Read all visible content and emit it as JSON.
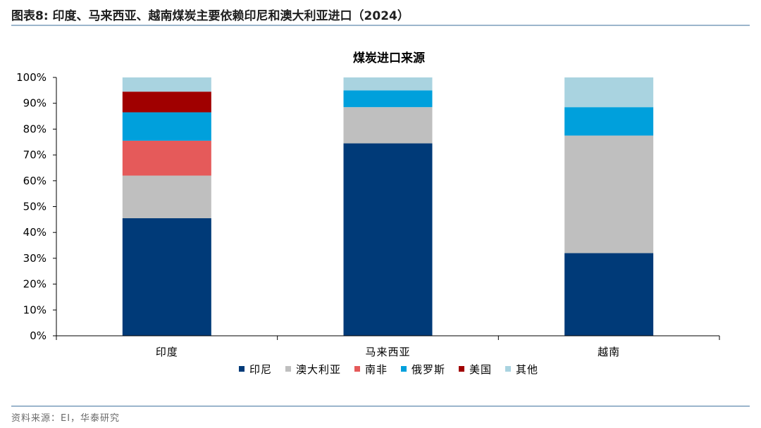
{
  "figure": {
    "title": "图表8:   印度、马来西亚、越南煤炭主要依赖印尼和澳大利亚进口（2024）",
    "source": "资料来源：EI，华泰研究"
  },
  "chart_data": {
    "type": "bar",
    "stacked": true,
    "title": "煤炭进口来源",
    "categories": [
      "印度",
      "马来西亚",
      "越南"
    ],
    "series": [
      {
        "name": "印尼",
        "color": "#003a78",
        "values": [
          45.5,
          74.5,
          32.0
        ]
      },
      {
        "name": "澳大利亚",
        "color": "#bfbfbf",
        "values": [
          16.5,
          14.0,
          45.5
        ]
      },
      {
        "name": "南非",
        "color": "#e55a5a",
        "values": [
          13.5,
          0,
          0
        ]
      },
      {
        "name": "俄罗斯",
        "color": "#00a0dc",
        "values": [
          11.0,
          6.5,
          11.0
        ]
      },
      {
        "name": "美国",
        "color": "#a00000",
        "values": [
          8.0,
          0,
          0
        ]
      },
      {
        "name": "其他",
        "color": "#a9d3e0",
        "values": [
          5.5,
          5.0,
          11.5
        ]
      }
    ],
    "ylim": [
      0,
      100
    ],
    "yticks": [
      "0%",
      "10%",
      "20%",
      "30%",
      "40%",
      "50%",
      "60%",
      "70%",
      "80%",
      "90%",
      "100%"
    ],
    "xlabel": "",
    "ylabel": "",
    "grid": false,
    "legend_position": "bottom"
  }
}
